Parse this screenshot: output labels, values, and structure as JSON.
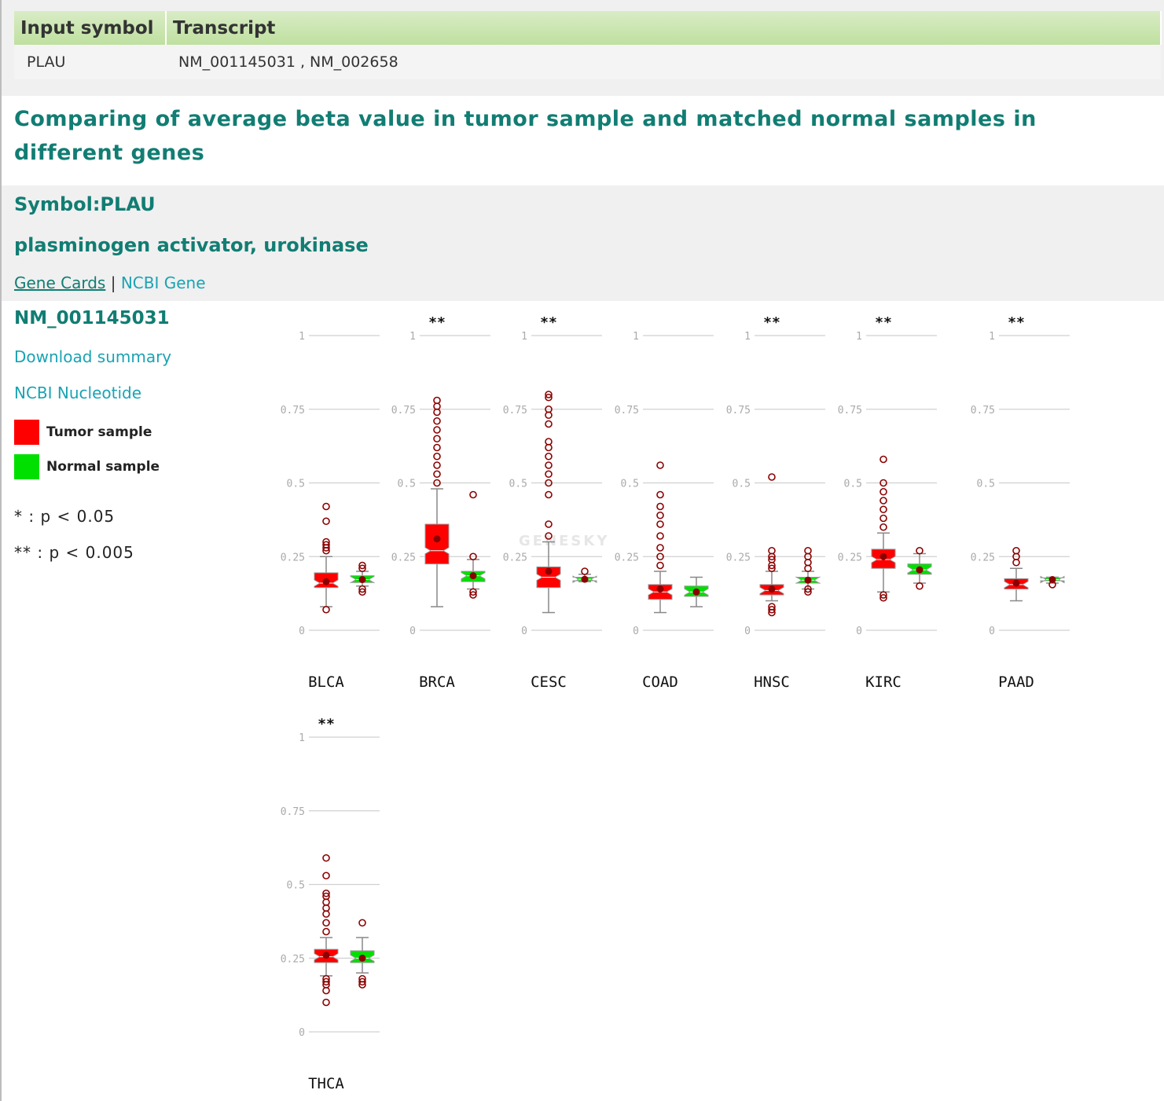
{
  "table": {
    "headers": [
      "Input symbol",
      "Transcript"
    ],
    "row": [
      "PLAU",
      "NM_001145031 , NM_002658"
    ]
  },
  "title": "Comparing of average beta value in tumor sample and matched normal samples in different genes",
  "gene": {
    "symbol_label": "Symbol:PLAU",
    "description": "plasminogen activator, urokinase",
    "link_genecards": "Gene Cards",
    "separator": "|",
    "link_ncbi_gene": "NCBI Gene"
  },
  "sidebar": {
    "transcript": "NM_001145031",
    "download": "Download summary",
    "nucleotide": "NCBI Nucleotide",
    "legend_tumor": "Tumor sample",
    "legend_normal": "Normal sample",
    "sig1": "* : p < 0.05",
    "sig2": "** : p < 0.005"
  },
  "watermark": "GENESKY",
  "colors": {
    "tumor": "#ff0000",
    "normal": "#00e000",
    "outlier": "#8b0000",
    "teal": "#117d73",
    "link": "#1aa3b3"
  },
  "chart_data": {
    "type": "boxplot",
    "yticks": [
      "0",
      "0.25",
      "0.5",
      "0.75",
      "1"
    ],
    "ylim": [
      0,
      1
    ],
    "series_names": [
      "Tumor sample",
      "Normal sample"
    ],
    "panels": [
      {
        "cancer": "BLCA",
        "sig": "",
        "tumor": {
          "min": 0.08,
          "q1": 0.145,
          "median": 0.16,
          "q3": 0.195,
          "max": 0.25,
          "mean": 0.165,
          "outliers": [
            0.07,
            0.27,
            0.28,
            0.29,
            0.3,
            0.37,
            0.42
          ]
        },
        "normal": {
          "min": 0.15,
          "q1": 0.162,
          "median": 0.172,
          "q3": 0.185,
          "max": 0.2,
          "mean": 0.172,
          "outliers": [
            0.13,
            0.14,
            0.21,
            0.22
          ]
        }
      },
      {
        "cancer": "BRCA",
        "sig": "**",
        "tumor": {
          "min": 0.08,
          "q1": 0.225,
          "median": 0.27,
          "q3": 0.36,
          "max": 0.48,
          "mean": 0.31,
          "outliers": [
            0.5,
            0.53,
            0.56,
            0.59,
            0.62,
            0.65,
            0.68,
            0.71,
            0.74,
            0.76,
            0.78
          ]
        },
        "normal": {
          "min": 0.14,
          "q1": 0.165,
          "median": 0.185,
          "q3": 0.2,
          "max": 0.24,
          "mean": 0.185,
          "outliers": [
            0.12,
            0.13,
            0.25,
            0.46
          ]
        }
      },
      {
        "cancer": "CESC",
        "sig": "**",
        "tumor": {
          "min": 0.06,
          "q1": 0.145,
          "median": 0.18,
          "q3": 0.215,
          "max": 0.3,
          "mean": 0.2,
          "outliers": [
            0.32,
            0.36,
            0.46,
            0.5,
            0.53,
            0.56,
            0.59,
            0.62,
            0.64,
            0.7,
            0.73,
            0.75,
            0.79,
            0.8
          ]
        },
        "normal": {
          "min": 0.165,
          "q1": 0.168,
          "median": 0.173,
          "q3": 0.18,
          "max": 0.19,
          "mean": 0.173,
          "outliers": [
            0.2
          ]
        }
      },
      {
        "cancer": "COAD",
        "sig": "",
        "tumor": {
          "min": 0.06,
          "q1": 0.105,
          "median": 0.13,
          "q3": 0.155,
          "max": 0.2,
          "mean": 0.14,
          "outliers": [
            0.22,
            0.25,
            0.28,
            0.32,
            0.36,
            0.39,
            0.42,
            0.46,
            0.56
          ]
        },
        "normal": {
          "min": 0.08,
          "q1": 0.115,
          "median": 0.13,
          "q3": 0.15,
          "max": 0.18,
          "mean": 0.13,
          "outliers": []
        }
      },
      {
        "cancer": "HNSC",
        "sig": "**",
        "tumor": {
          "min": 0.1,
          "q1": 0.12,
          "median": 0.135,
          "q3": 0.155,
          "max": 0.2,
          "mean": 0.14,
          "outliers": [
            0.06,
            0.07,
            0.08,
            0.21,
            0.22,
            0.24,
            0.25,
            0.27,
            0.52
          ]
        },
        "normal": {
          "min": 0.14,
          "q1": 0.16,
          "median": 0.17,
          "q3": 0.18,
          "max": 0.2,
          "mean": 0.17,
          "outliers": [
            0.13,
            0.14,
            0.21,
            0.23,
            0.25,
            0.27
          ]
        }
      },
      {
        "cancer": "KIRC",
        "sig": "**",
        "tumor": {
          "min": 0.13,
          "q1": 0.21,
          "median": 0.24,
          "q3": 0.275,
          "max": 0.33,
          "mean": 0.25,
          "outliers": [
            0.11,
            0.12,
            0.35,
            0.38,
            0.41,
            0.44,
            0.47,
            0.5,
            0.58
          ]
        },
        "normal": {
          "min": 0.16,
          "q1": 0.19,
          "median": 0.205,
          "q3": 0.225,
          "max": 0.26,
          "mean": 0.205,
          "outliers": [
            0.15,
            0.27
          ]
        }
      },
      {
        "cancer": "PAAD",
        "sig": "**",
        "tumor": {
          "min": 0.1,
          "q1": 0.14,
          "median": 0.155,
          "q3": 0.175,
          "max": 0.21,
          "mean": 0.16,
          "outliers": [
            0.23,
            0.25,
            0.27
          ]
        },
        "normal": {
          "min": 0.16,
          "q1": 0.168,
          "median": 0.172,
          "q3": 0.178,
          "max": 0.18,
          "mean": 0.172,
          "outliers": [
            0.155
          ]
        }
      },
      {
        "cancer": "THCA",
        "sig": "**",
        "tumor": {
          "min": 0.19,
          "q1": 0.235,
          "median": 0.255,
          "q3": 0.28,
          "max": 0.32,
          "mean": 0.26,
          "outliers": [
            0.1,
            0.14,
            0.16,
            0.17,
            0.18,
            0.34,
            0.37,
            0.4,
            0.42,
            0.44,
            0.46,
            0.47,
            0.53,
            0.59
          ]
        },
        "normal": {
          "min": 0.2,
          "q1": 0.235,
          "median": 0.25,
          "q3": 0.275,
          "max": 0.32,
          "mean": 0.25,
          "outliers": [
            0.16,
            0.17,
            0.18,
            0.37
          ]
        }
      }
    ]
  }
}
